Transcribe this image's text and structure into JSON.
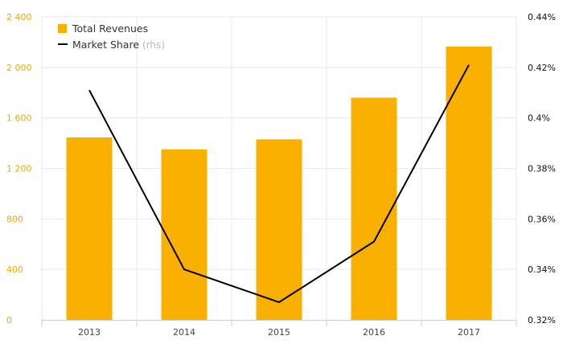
{
  "chart_data": {
    "type": "bar",
    "categories": [
      "2013",
      "2014",
      "2015",
      "2016",
      "2017"
    ],
    "series": [
      {
        "name": "Total Revenues",
        "type": "bar",
        "axis": "left",
        "color": "#f9b000",
        "values": [
          1445,
          1350,
          1430,
          1760,
          2165
        ]
      },
      {
        "name": "Market Share",
        "name_suffix": "(rhs)",
        "type": "line",
        "axis": "right",
        "color": "#000000",
        "values": [
          0.411,
          0.34,
          0.327,
          0.351,
          0.421
        ]
      }
    ],
    "y_left": {
      "min": 0,
      "max": 2400,
      "ticks": [
        0,
        400,
        800,
        1200,
        1600,
        2000,
        2400
      ],
      "tick_labels": [
        "0",
        "400",
        "800",
        "1 200",
        "1 600",
        "2 000",
        "2 400"
      ],
      "color": "#f5a800"
    },
    "y_right": {
      "min": 0.32,
      "max": 0.44,
      "ticks": [
        0.32,
        0.34,
        0.36,
        0.38,
        0.4,
        0.42,
        0.44
      ],
      "tick_labels": [
        "0.32%",
        "0.34%",
        "0.36%",
        "0.38%",
        "0.4%",
        "0.42%",
        "0.44%"
      ],
      "color": "#111111"
    },
    "grid": true,
    "legend_position": "top-left",
    "title": "",
    "xlabel": "",
    "ylabel": ""
  }
}
